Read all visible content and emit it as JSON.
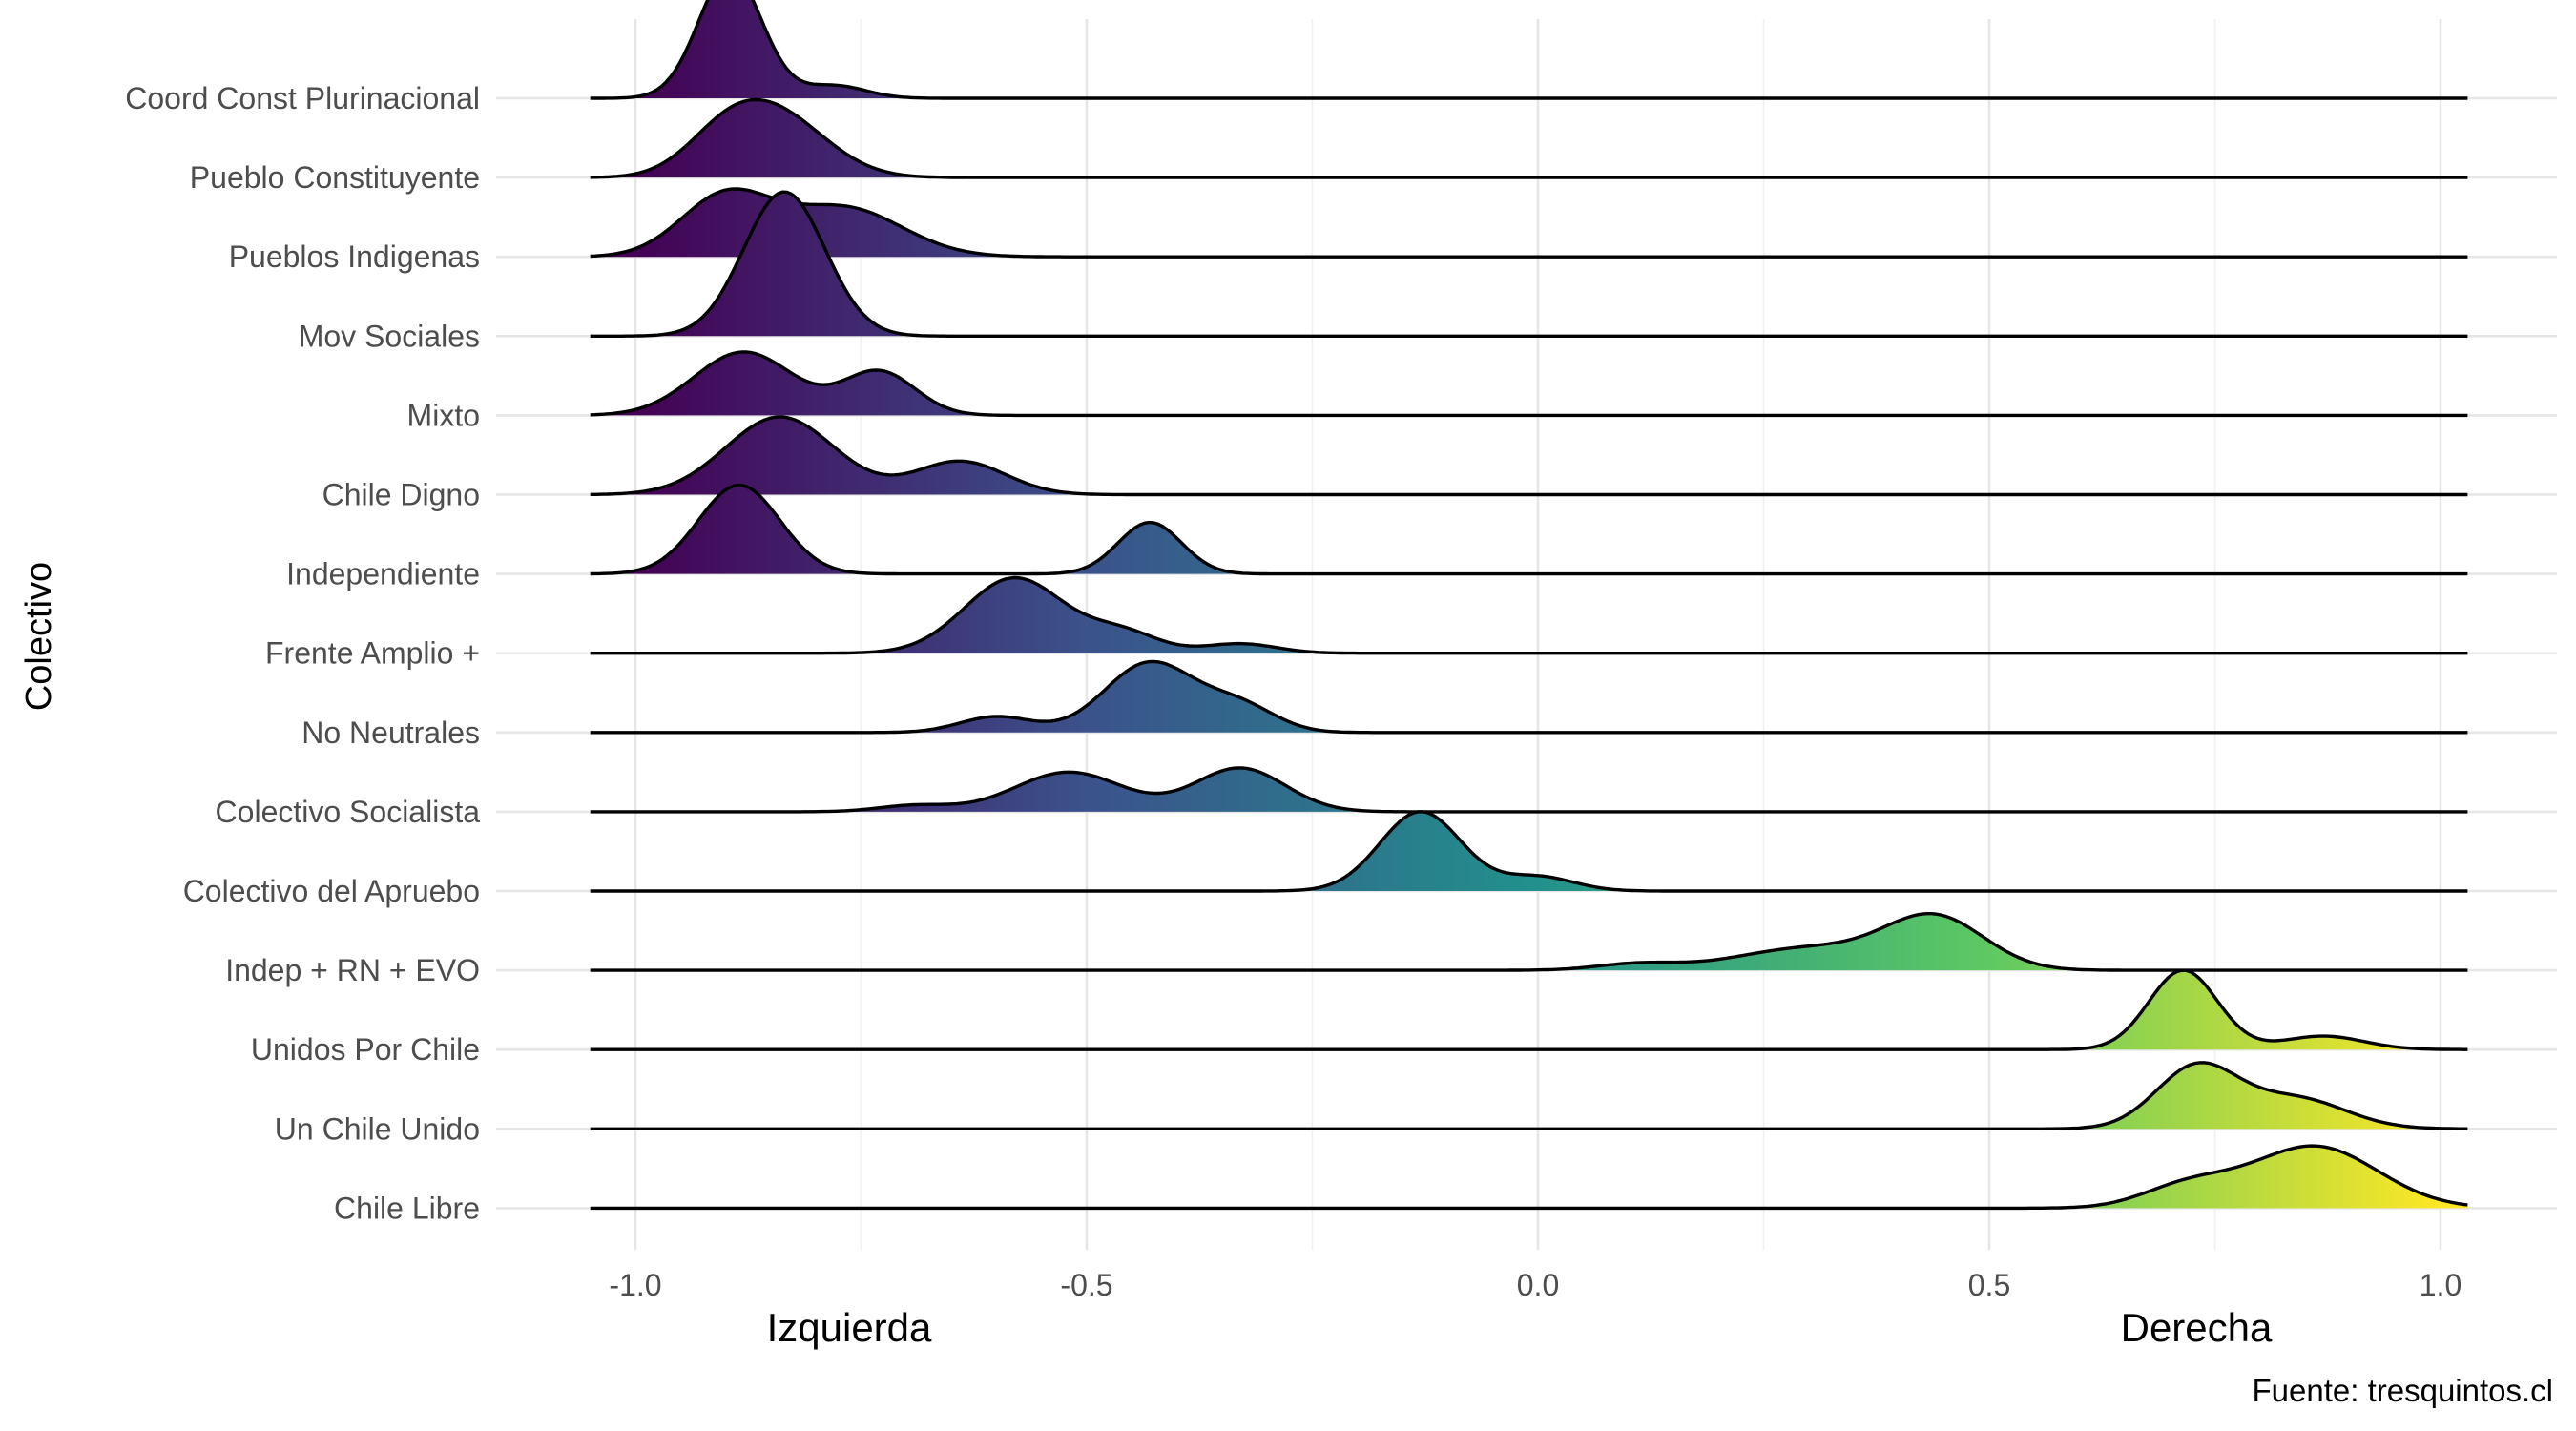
{
  "chart_data": {
    "type": "ridgeline",
    "ylabel": "Colectivo",
    "x_annotations": {
      "left": "Izquierda",
      "right": "Derecha"
    },
    "caption": "Fuente: tresquintos.cl",
    "xlim": [
      -1.1,
      1.12
    ],
    "x_ticks": [
      -1.0,
      -0.5,
      0.0,
      0.5,
      1.0
    ],
    "x_tick_labels": [
      "-1.0",
      "-0.5",
      "0.0",
      "0.5",
      "1.0"
    ],
    "grid": true,
    "color_scale": "viridis",
    "colors": [
      "#440154",
      "#3b528b",
      "#21918c",
      "#5ec962",
      "#fde725"
    ],
    "categories": [
      {
        "name": "Chile Libre",
        "range": [
          -1.05,
          1.03
        ],
        "peaks": [
          [
            0.72,
            0.05,
            0.27
          ],
          [
            0.86,
            0.07,
            0.78
          ]
        ]
      },
      {
        "name": "Un Chile Unido",
        "range": [
          -1.05,
          1.03
        ],
        "peaks": [
          [
            0.73,
            0.045,
            0.78
          ],
          [
            0.84,
            0.055,
            0.38
          ]
        ]
      },
      {
        "name": "Unidos Por Chile",
        "range": [
          -1.05,
          1.03
        ],
        "peaks": [
          [
            0.715,
            0.038,
            1.0
          ],
          [
            0.87,
            0.045,
            0.17
          ]
        ]
      },
      {
        "name": "Indep + RN + EVO",
        "range": [
          -1.05,
          1.03
        ],
        "peaks": [
          [
            0.11,
            0.045,
            0.08
          ],
          [
            0.3,
            0.08,
            0.28
          ],
          [
            0.44,
            0.055,
            0.65
          ]
        ]
      },
      {
        "name": "Colectivo del Apruebo",
        "range": [
          -1.05,
          1.03
        ],
        "peaks": [
          [
            -0.13,
            0.045,
            1.0
          ],
          [
            0.0,
            0.04,
            0.18
          ]
        ]
      },
      {
        "name": "Colectivo Socialista",
        "range": [
          -1.05,
          1.03
        ],
        "peaks": [
          [
            -0.69,
            0.04,
            0.08
          ],
          [
            -0.52,
            0.06,
            0.5
          ],
          [
            -0.33,
            0.05,
            0.55
          ]
        ]
      },
      {
        "name": "No Neutrales",
        "range": [
          -1.05,
          1.03
        ],
        "peaks": [
          [
            -0.6,
            0.04,
            0.2
          ],
          [
            -0.43,
            0.05,
            0.88
          ],
          [
            -0.33,
            0.04,
            0.32
          ]
        ]
      },
      {
        "name": "Frente Amplio +",
        "range": [
          -1.05,
          1.03
        ],
        "peaks": [
          [
            -0.58,
            0.055,
            0.95
          ],
          [
            -0.46,
            0.04,
            0.25
          ],
          [
            -0.33,
            0.04,
            0.12
          ]
        ]
      },
      {
        "name": "Independiente",
        "range": [
          -1.05,
          1.03
        ],
        "peaks": [
          [
            -0.885,
            0.045,
            1.12
          ],
          [
            -0.43,
            0.035,
            0.65
          ]
        ]
      },
      {
        "name": "Chile Digno",
        "range": [
          -1.05,
          1.03
        ],
        "peaks": [
          [
            -0.84,
            0.06,
            0.98
          ],
          [
            -0.64,
            0.05,
            0.42
          ]
        ]
      },
      {
        "name": "Mixto",
        "range": [
          -1.05,
          1.03
        ],
        "peaks": [
          [
            -0.88,
            0.055,
            0.8
          ],
          [
            -0.73,
            0.04,
            0.55
          ]
        ]
      },
      {
        "name": "Mov Sociales",
        "range": [
          -1.05,
          1.03
        ],
        "peaks": [
          [
            -0.835,
            0.045,
            1.82
          ]
        ]
      },
      {
        "name": "Pueblos Indigenas",
        "range": [
          -1.05,
          1.03
        ],
        "peaks": [
          [
            -0.9,
            0.05,
            0.76
          ],
          [
            -0.77,
            0.065,
            0.62
          ]
        ]
      },
      {
        "name": "Pueblo Constituyente",
        "range": [
          -1.05,
          1.03
        ],
        "peaks": [
          [
            -0.9,
            0.045,
            0.45
          ],
          [
            -0.84,
            0.055,
            0.72
          ]
        ]
      },
      {
        "name": "Coord Const Plurinacional",
        "range": [
          -1.05,
          1.03
        ],
        "peaks": [
          [
            -0.895,
            0.035,
            1.6
          ],
          [
            -0.78,
            0.035,
            0.16
          ]
        ]
      }
    ]
  }
}
